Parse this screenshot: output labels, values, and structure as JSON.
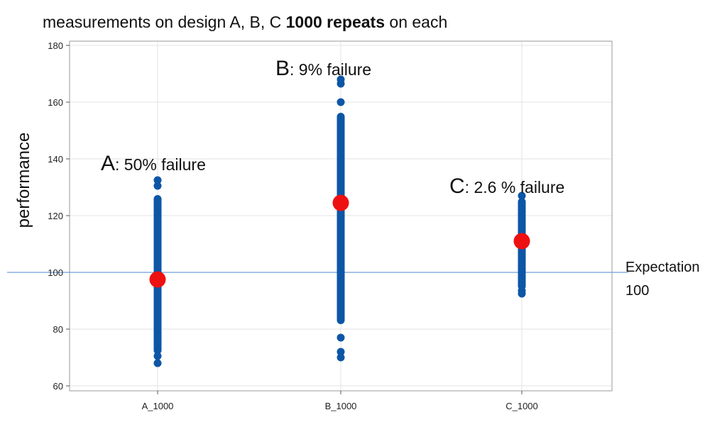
{
  "chart_data": {
    "type": "scatter",
    "title": {
      "prefix": "measurements on design A, B, C ",
      "bold": "1000 repeats",
      "suffix": " on each"
    },
    "xlabel": "",
    "ylabel": "performance",
    "ylim": [
      60,
      180
    ],
    "yticks": [
      60,
      80,
      100,
      120,
      140,
      160,
      180
    ],
    "grid": true,
    "categories": [
      "A_1000",
      "B_1000",
      "C_1000"
    ],
    "groups": [
      {
        "category": "A_1000",
        "strip_range": [
          73,
          126
        ],
        "outliers": [
          130.5,
          132.5,
          72.5,
          70.5,
          68
        ],
        "mean": 97.5,
        "annotation": {
          "letter": "A",
          "text": ": 50% failure"
        }
      },
      {
        "category": "B_1000",
        "strip_range": [
          83,
          155
        ],
        "outliers": [
          160,
          166.5,
          168,
          77,
          72,
          70
        ],
        "mean": 124.5,
        "annotation": {
          "letter": "B",
          "text": ": 9% failure"
        }
      },
      {
        "category": "C_1000",
        "strip_range": [
          95,
          125
        ],
        "outliers": [
          127,
          93.5,
          92.5
        ],
        "mean": 111,
        "annotation": {
          "letter": "C",
          "text": ": 2.6 % failure"
        }
      }
    ],
    "reference_line": {
      "value": 100,
      "label_line1": "Expectation",
      "label_line2": "100"
    },
    "colors": {
      "points": "#0d56a6",
      "mean": "#ee1111",
      "reference": "#6f9fd8",
      "grid": "#e3e3e3",
      "frame": "#9a9a9a"
    }
  }
}
